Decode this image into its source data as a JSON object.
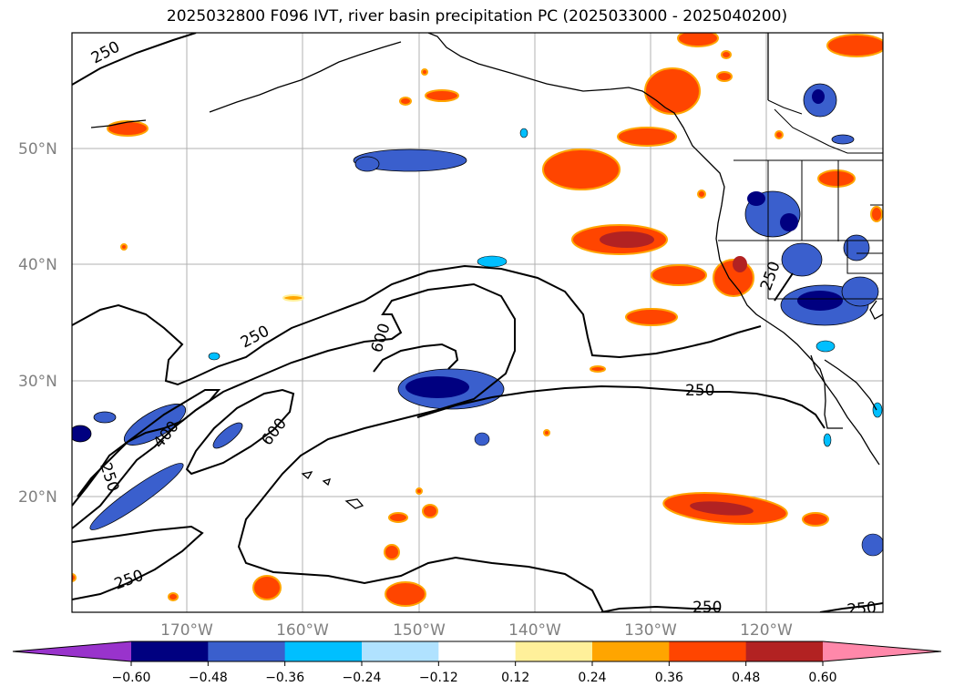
{
  "title": "2025032800 F096 IVT, river basin precipitation PC (2025033000 - 2025040200)",
  "map": {
    "lat_labels": [
      "50°N",
      "40°N",
      "30°N",
      "20°N"
    ],
    "lon_labels": [
      "170°W",
      "160°W",
      "150°W",
      "140°W",
      "130°W",
      "120°W"
    ],
    "contour_labels": [
      "250",
      "250",
      "600",
      "250",
      "400",
      "600",
      "250",
      "250",
      "250",
      "250",
      "250",
      "600"
    ]
  },
  "colorbar": {
    "tick_labels": [
      "−0.60",
      "−0.48",
      "−0.36",
      "−0.24",
      "−0.12",
      "0.12",
      "0.24",
      "0.36",
      "0.48",
      "0.60"
    ],
    "colors": [
      "#9933cc",
      "#000080",
      "#3a5fcd",
      "#00bfff",
      "#b0e2ff",
      "#ffffff",
      "#fff09a",
      "#ffa500",
      "#ff4500",
      "#b22222",
      "#ff88aa"
    ]
  }
}
